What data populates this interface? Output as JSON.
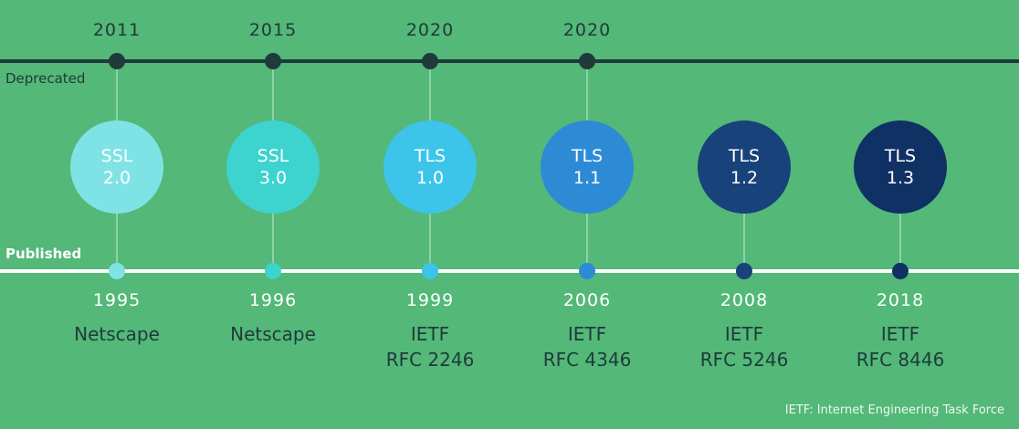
{
  "rails": {
    "deprecated_label": "Deprecated",
    "published_label": "Published"
  },
  "versions": [
    {
      "protocol": "SSL",
      "version": "2.0",
      "deprecated_year": "2011",
      "published_year": "1995",
      "org_line1": "Netscape",
      "org_line2": "",
      "color": "#7fe3e6"
    },
    {
      "protocol": "SSL",
      "version": "3.0",
      "deprecated_year": "2015",
      "published_year": "1996",
      "org_line1": "Netscape",
      "org_line2": "",
      "color": "#3dd3cf"
    },
    {
      "protocol": "TLS",
      "version": "1.0",
      "deprecated_year": "2020",
      "published_year": "1999",
      "org_line1": "IETF",
      "org_line2": "RFC 2246",
      "color": "#3cc4ea"
    },
    {
      "protocol": "TLS",
      "version": "1.1",
      "deprecated_year": "2020",
      "published_year": "2006",
      "org_line1": "IETF",
      "org_line2": "RFC 4346",
      "color": "#2d8bd6"
    },
    {
      "protocol": "TLS",
      "version": "1.2",
      "deprecated_year": "",
      "published_year": "2008",
      "org_line1": "IETF",
      "org_line2": "RFC 5246",
      "color": "#17427a"
    },
    {
      "protocol": "TLS",
      "version": "1.3",
      "deprecated_year": "",
      "published_year": "2018",
      "org_line1": "IETF",
      "org_line2": "RFC 8446",
      "color": "#0f3164"
    }
  ],
  "footer": "IETF: Internet Engineering Task Force"
}
